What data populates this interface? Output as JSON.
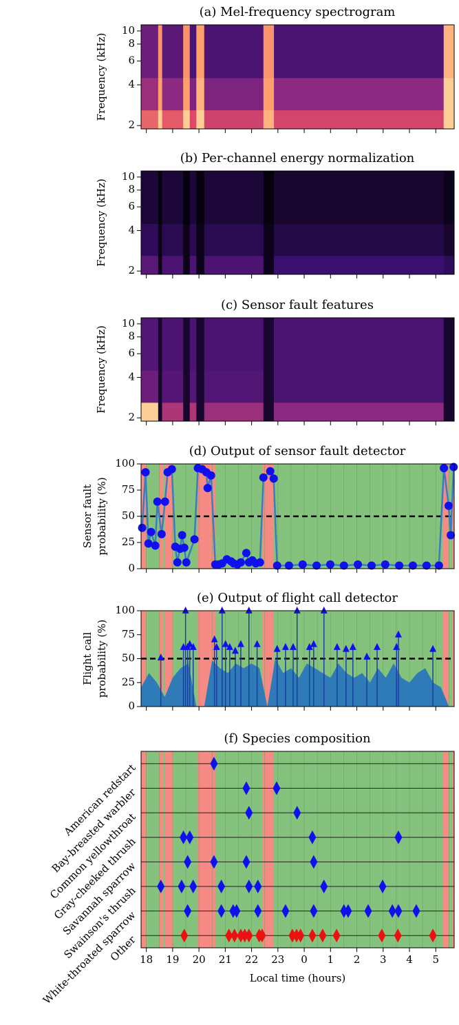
{
  "chart_data": [
    {
      "type": "heatmap",
      "title": "(a) Mel-frequency spectrogram",
      "ylabel": "Frequency (kHz)",
      "ylog": true,
      "ylim": [
        1.89,
        11.1
      ],
      "yticks": [
        2,
        4,
        6,
        8,
        10
      ],
      "xlim": [
        17.8,
        29.7
      ],
      "xticks": [
        18,
        19,
        20,
        21,
        22,
        23,
        24,
        25,
        26,
        27,
        28,
        29
      ],
      "x_edges": [
        17.8,
        18.45,
        18.6,
        19.4,
        19.65,
        19.9,
        20.2,
        22.45,
        22.85,
        29.3,
        29.7
      ],
      "band_edges": [
        1.89,
        2.6,
        4.5,
        11.1
      ],
      "z": [
        [
          0.8,
          0.95,
          0.78,
          0.95,
          0.75,
          0.95,
          0.7,
          0.92,
          0.72,
          0.95
        ],
        [
          0.55,
          0.9,
          0.5,
          0.9,
          0.45,
          0.92,
          0.45,
          0.9,
          0.5,
          0.95
        ],
        [
          0.4,
          0.88,
          0.35,
          0.88,
          0.3,
          0.9,
          0.3,
          0.88,
          0.3,
          0.92
        ]
      ]
    },
    {
      "type": "heatmap",
      "title": "(b) Per-channel energy normalization",
      "ylabel": "Frequency (kHz)",
      "ylog": true,
      "ylim": [
        1.89,
        11.1
      ],
      "yticks": [
        2,
        4,
        6,
        8,
        10
      ],
      "xlim": [
        17.8,
        29.7
      ],
      "xticks": [
        18,
        19,
        20,
        21,
        22,
        23,
        24,
        25,
        26,
        27,
        28,
        29
      ],
      "x_edges": [
        17.8,
        18.45,
        18.6,
        19.4,
        19.65,
        19.9,
        20.2,
        22.45,
        22.85,
        29.3,
        29.7
      ],
      "band_edges": [
        1.89,
        2.6,
        4.5,
        11.1
      ],
      "z": [
        [
          0.35,
          0.05,
          0.3,
          0.05,
          0.3,
          0.05,
          0.3,
          0.05,
          0.25,
          0.2
        ],
        [
          0.2,
          0.05,
          0.18,
          0.05,
          0.18,
          0.05,
          0.18,
          0.05,
          0.15,
          0.1
        ],
        [
          0.12,
          0.02,
          0.12,
          0.02,
          0.12,
          0.02,
          0.12,
          0.02,
          0.1,
          0.05
        ]
      ]
    },
    {
      "type": "heatmap",
      "title": "(c) Sensor fault features",
      "ylabel": "Frequency (kHz)",
      "ylog": true,
      "ylim": [
        1.89,
        11.1
      ],
      "yticks": [
        2,
        4,
        6,
        8,
        10
      ],
      "xlim": [
        17.8,
        29.7
      ],
      "xticks": [
        18,
        19,
        20,
        21,
        22,
        23,
        24,
        25,
        26,
        27,
        28,
        29
      ],
      "x_edges": [
        17.8,
        18.45,
        18.6,
        19.4,
        19.65,
        19.9,
        20.2,
        22.45,
        22.85,
        29.3,
        29.7
      ],
      "band_edges": [
        1.89,
        2.6,
        4.5,
        11.1
      ],
      "z": [
        [
          0.95,
          0.1,
          0.6,
          0.1,
          0.6,
          0.1,
          0.55,
          0.1,
          0.5,
          0.1
        ],
        [
          0.4,
          0.1,
          0.33,
          0.1,
          0.33,
          0.1,
          0.32,
          0.1,
          0.3,
          0.1
        ],
        [
          0.32,
          0.1,
          0.3,
          0.1,
          0.3,
          0.1,
          0.3,
          0.1,
          0.3,
          0.1
        ]
      ]
    },
    {
      "type": "line",
      "title": "(d) Output of sensor fault detector",
      "ylabel": [
        "Sensor fault",
        "probability (%)"
      ],
      "ylim": [
        0,
        100
      ],
      "yticks": [
        0,
        25,
        50,
        75,
        100
      ],
      "xlim": [
        17.8,
        29.7
      ],
      "xticks": [
        18,
        19,
        20,
        21,
        22,
        23,
        24,
        25,
        26,
        27,
        28,
        29
      ],
      "threshold": 50,
      "fault_intervals": [
        [
          17.8,
          18.0
        ],
        [
          18.5,
          18.63
        ],
        [
          18.71,
          19.03
        ],
        [
          19.94,
          20.62
        ],
        [
          22.4,
          22.84
        ],
        [
          29.26,
          29.5
        ],
        [
          29.63,
          29.7
        ]
      ],
      "fault_color": "#f58b84",
      "ok_color": "#85c27d",
      "line_color": "#3a7dbf",
      "marker_color": "#1010ee",
      "x": [
        17.84,
        17.97,
        18.08,
        18.18,
        18.34,
        18.42,
        18.58,
        18.71,
        18.81,
        18.97,
        19.1,
        19.18,
        19.28,
        19.36,
        19.44,
        19.52,
        19.83,
        19.96,
        20.12,
        20.28,
        20.33,
        20.46,
        20.62,
        20.75,
        20.88,
        21.06,
        21.22,
        21.32,
        21.46,
        21.59,
        21.8,
        21.9,
        22.03,
        22.16,
        22.32,
        22.45,
        22.71,
        22.84,
        22.97,
        23.42,
        23.94,
        24.47,
        24.99,
        25.51,
        26.04,
        26.56,
        27.08,
        27.61,
        28.13,
        28.65,
        29.12,
        29.31,
        29.49,
        29.57,
        29.68
      ],
      "values": [
        39,
        92,
        24,
        35,
        22,
        64,
        33,
        64,
        92,
        95,
        21,
        6,
        19,
        32,
        20,
        6,
        28,
        96,
        95,
        92,
        77,
        89,
        4,
        4,
        5,
        9,
        7,
        5,
        4,
        6,
        15,
        6,
        8,
        5,
        6,
        87,
        93,
        86,
        3,
        3,
        4,
        3,
        4,
        3,
        4,
        3,
        4,
        3,
        3,
        3,
        3,
        96,
        60,
        32,
        97
      ]
    },
    {
      "type": "area",
      "title": "(e) Output of flight call detector",
      "ylabel": [
        "Flight call",
        "probability (%)"
      ],
      "ylim": [
        0,
        100
      ],
      "yticks": [
        0,
        25,
        50,
        75,
        100
      ],
      "xlim": [
        17.8,
        29.7
      ],
      "xticks": [
        18,
        19,
        20,
        21,
        22,
        23,
        24,
        25,
        26,
        27,
        28,
        29
      ],
      "threshold": 50,
      "fault_intervals": [
        [
          17.8,
          18.0
        ],
        [
          18.5,
          18.63
        ],
        [
          18.71,
          19.03
        ],
        [
          19.94,
          20.62
        ],
        [
          22.4,
          22.84
        ],
        [
          29.26,
          29.5
        ],
        [
          29.63,
          29.7
        ]
      ],
      "fault_color": "#f58b84",
      "ok_color": "#85c27d",
      "area_color": "#2e7bb8",
      "marker_color": "#1010ee",
      "x": [
        17.8,
        18.1,
        18.4,
        18.7,
        19.0,
        19.3,
        19.6,
        19.9,
        20.2,
        20.5,
        20.8,
        21.1,
        21.4,
        21.7,
        22.0,
        22.3,
        22.6,
        22.9,
        23.2,
        23.5,
        23.8,
        24.1,
        24.4,
        24.7,
        25.0,
        25.3,
        25.6,
        25.9,
        26.2,
        26.5,
        26.8,
        27.1,
        27.4,
        27.7,
        28.0,
        28.3,
        28.6,
        28.9,
        29.2,
        29.5,
        29.7
      ],
      "values": [
        20,
        35,
        25,
        10,
        30,
        40,
        45,
        0,
        0,
        48,
        40,
        35,
        45,
        40,
        45,
        40,
        0,
        50,
        35,
        40,
        30,
        45,
        40,
        35,
        30,
        45,
        35,
        30,
        35,
        25,
        40,
        30,
        45,
        30,
        25,
        35,
        40,
        25,
        20,
        0,
        0
      ],
      "peaks_x": [
        18.55,
        19.41,
        19.49,
        19.57,
        19.65,
        19.78,
        20.59,
        20.67,
        20.88,
        21.01,
        21.17,
        21.38,
        21.59,
        21.9,
        22.21,
        22.97,
        23.29,
        23.58,
        23.73,
        24.2,
        24.36,
        24.75,
        25.25,
        25.59,
        25.85,
        26.38,
        26.77,
        27.51,
        27.58,
        28.89
      ],
      "peaks": [
        51,
        62,
        100,
        62,
        65,
        62,
        70,
        62,
        100,
        65,
        62,
        58,
        65,
        100,
        65,
        60,
        62,
        62,
        100,
        62,
        65,
        100,
        62,
        60,
        62,
        52,
        62,
        62,
        75,
        60
      ]
    },
    {
      "type": "strip",
      "title": "(f) Species composition",
      "xlabel": "Local time (hours)",
      "xlim": [
        17.8,
        29.7
      ],
      "xticks": [
        18,
        19,
        20,
        21,
        22,
        23,
        {
          "value": 24,
          "label": "0"
        },
        {
          "value": 25,
          "label": "1"
        },
        {
          "value": 26,
          "label": "2"
        },
        {
          "value": 27,
          "label": "3"
        },
        {
          "value": 28,
          "label": "4"
        },
        {
          "value": 29,
          "label": "5"
        }
      ],
      "fault_intervals": [
        [
          17.8,
          18.0
        ],
        [
          18.5,
          18.63
        ],
        [
          18.71,
          19.03
        ],
        [
          19.94,
          20.62
        ],
        [
          22.4,
          22.84
        ],
        [
          29.26,
          29.5
        ],
        [
          29.63,
          29.7
        ]
      ],
      "fault_color": "#f58b84",
      "ok_color": "#85c27d",
      "series": [
        {
          "name": "American redstart",
          "color": "#1010ee",
          "x": [
            20.57
          ]
        },
        {
          "name": "Bay-breasted warbler",
          "color": "#1010ee",
          "x": [
            21.8,
            22.95
          ]
        },
        {
          "name": "Common yellowthroat",
          "color": "#1010ee",
          "x": [
            21.9,
            23.73
          ]
        },
        {
          "name": "Gray-cheeked thrush",
          "color": "#1010ee",
          "x": [
            19.41,
            19.65,
            24.31,
            27.58
          ]
        },
        {
          "name": "Savannah sparrow",
          "color": "#1010ee",
          "x": [
            19.57,
            20.57,
            21.8,
            24.36
          ]
        },
        {
          "name": "Swainson's thrush",
          "color": "#1010ee",
          "x": [
            18.55,
            19.34,
            19.78,
            20.85,
            21.9,
            22.24,
            24.75,
            26.98
          ]
        },
        {
          "name": "White-throated sparrow",
          "color": "#1010ee",
          "x": [
            19.57,
            20.85,
            21.3,
            21.43,
            22.24,
            23.29,
            24.36,
            25.51,
            25.67,
            26.43,
            27.35,
            27.58,
            28.26
          ]
        },
        {
          "name": "Other",
          "color": "#ee1010",
          "x": [
            19.44,
            21.14,
            21.35,
            21.59,
            21.74,
            21.9,
            22.29,
            22.4,
            23.55,
            23.71,
            23.86,
            24.31,
            24.7,
            25.23,
            26.95,
            27.56,
            28.89
          ]
        }
      ]
    }
  ]
}
